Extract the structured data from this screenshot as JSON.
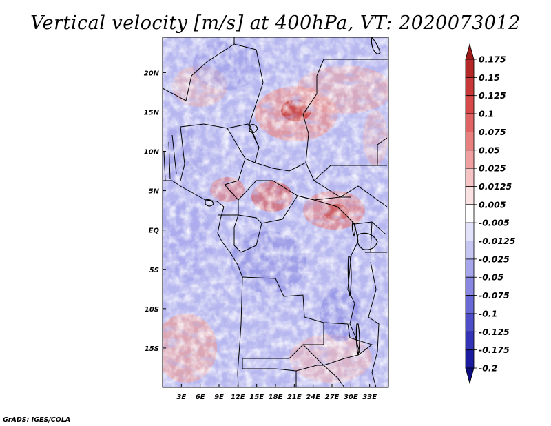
{
  "chart_data": {
    "type": "heatmap",
    "title": "Vertical velocity [m/s] at 400hPa, VT: 2020073012",
    "variable": "Vertical velocity",
    "units": "m/s",
    "level": "400hPa",
    "valid_time": "2020073012",
    "x_axis": {
      "range_deg": [
        0,
        36
      ],
      "tick_values": [
        3,
        6,
        9,
        12,
        15,
        18,
        21,
        24,
        27,
        30,
        33
      ],
      "tick_labels": [
        "3E",
        "6E",
        "9E",
        "12E",
        "15E",
        "18E",
        "21E",
        "24E",
        "27E",
        "30E",
        "33E"
      ]
    },
    "y_axis": {
      "range_deg": [
        -20,
        24.5
      ],
      "tick_values": [
        20,
        15,
        10,
        5,
        0,
        -5,
        -10,
        -15
      ],
      "tick_labels": [
        "20N",
        "15N",
        "10N",
        "5N",
        "EQ",
        "5S",
        "10S",
        "15S"
      ]
    },
    "colorbar": {
      "levels": [
        "0.175",
        "0.15",
        "0.125",
        "0.1",
        "0.075",
        "0.05",
        "0.025",
        "0.0125",
        "0.005",
        "-0.005",
        "-0.0125",
        "-0.025",
        "-0.05",
        "-0.075",
        "-0.1",
        "-0.125",
        "-0.175",
        "-0.2"
      ],
      "colors": [
        "#a01a1a",
        "#b52828",
        "#c83838",
        "#d84a4a",
        "#e06464",
        "#e88080",
        "#f0a0a0",
        "#f6c4c4",
        "#fbe2e2",
        "#ffffff",
        "#e2e2fb",
        "#c6c6f3",
        "#a6a6ec",
        "#8888e2",
        "#6a6ad6",
        "#4e4ec8",
        "#3434b8",
        "#1c1ca0",
        "#0c0c80"
      ]
    },
    "credit": "GrADS: IGES/COLA"
  }
}
